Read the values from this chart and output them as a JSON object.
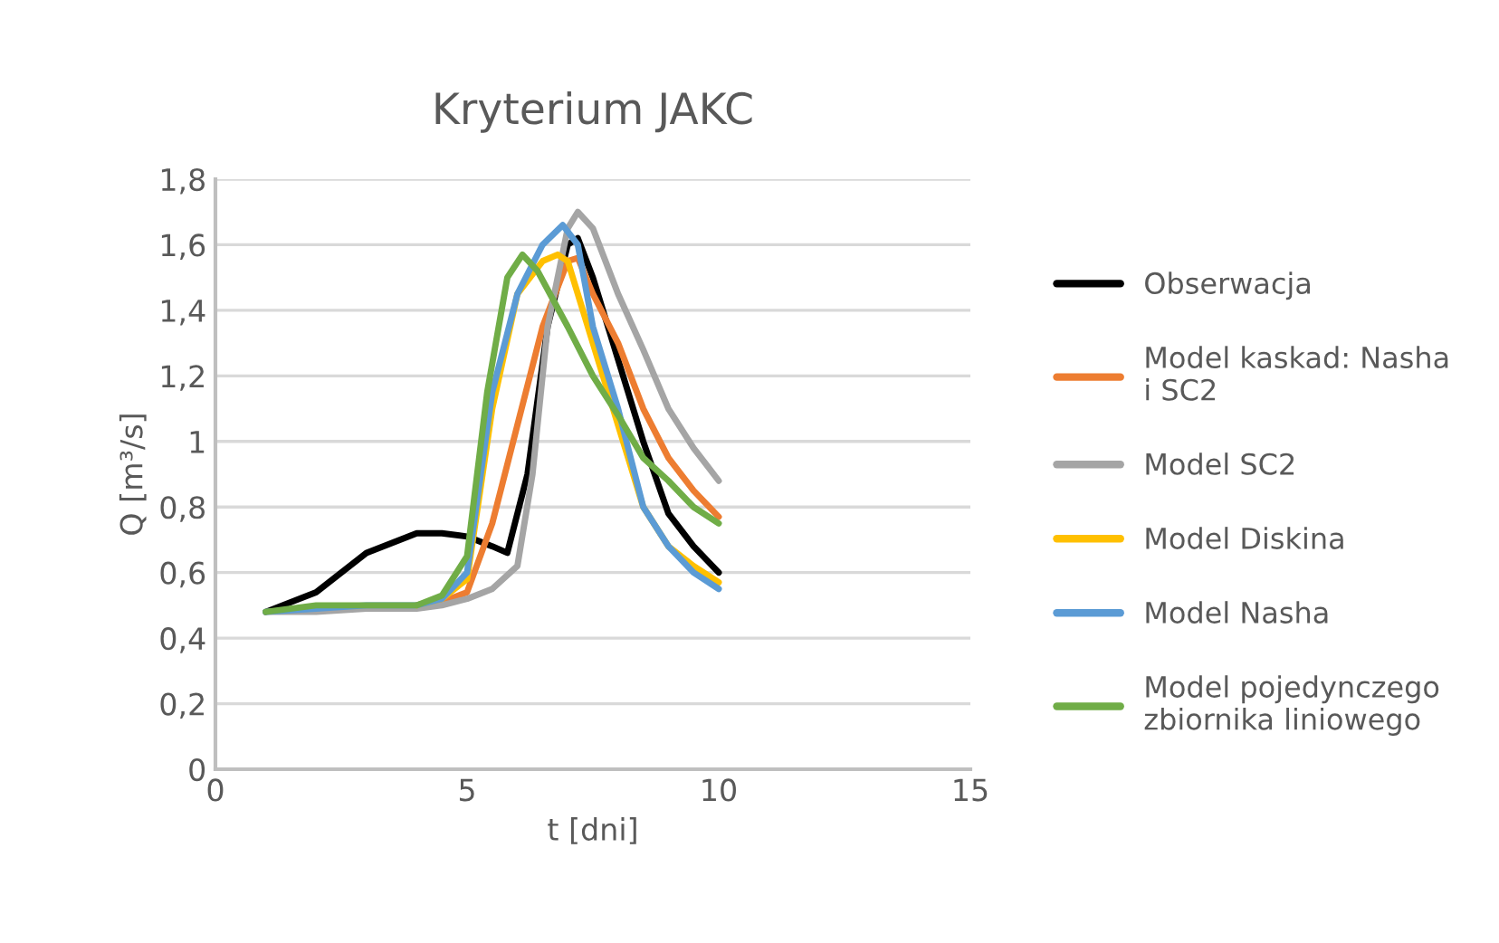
{
  "chart_data": {
    "type": "line",
    "title": "Kryterium JAKC",
    "xlabel": "t [dni]",
    "ylabel": "Q [m³/s]",
    "xlim": [
      0,
      15
    ],
    "xticks": [
      0,
      5,
      10,
      15
    ],
    "ylim": [
      0,
      1.8
    ],
    "yticks": [
      0,
      {
        "value": 0.2,
        "label": "0,2"
      },
      {
        "value": 0.4,
        "label": "0,4"
      },
      {
        "value": 0.6,
        "label": "0,6"
      },
      {
        "value": 0.8,
        "label": "0,8"
      },
      1,
      {
        "value": 1.2,
        "label": "1,2"
      },
      {
        "value": 1.4,
        "label": "1,4"
      },
      {
        "value": 1.6,
        "label": "1,6"
      },
      {
        "value": 1.8,
        "label": "1,8"
      }
    ],
    "grid": "y",
    "legend": "right",
    "marker": "none",
    "line_style": "solid",
    "series": [
      {
        "name": "Obserwacja",
        "color": "#000000",
        "x": [
          1,
          2,
          3,
          4,
          4.5,
          5,
          5.5,
          5.8,
          6.2,
          6.6,
          7,
          7.2,
          7.5,
          8,
          8.5,
          9,
          9.5,
          10
        ],
        "values": [
          0.48,
          0.54,
          0.66,
          0.72,
          0.72,
          0.71,
          0.68,
          0.66,
          0.9,
          1.35,
          1.6,
          1.62,
          1.5,
          1.25,
          1.0,
          0.78,
          0.68,
          0.6
        ]
      },
      {
        "name": "Model kaskad: Nasha\ni SC2",
        "color": "#ed7d31",
        "x": [
          4,
          4.5,
          5,
          5.5,
          6,
          6.5,
          7,
          7.2,
          7.5,
          8,
          8.5,
          9,
          9.5,
          10
        ],
        "values": [
          0.5,
          0.51,
          0.54,
          0.75,
          1.05,
          1.35,
          1.55,
          1.56,
          1.45,
          1.3,
          1.1,
          0.95,
          0.85,
          0.77
        ]
      },
      {
        "name": "Model SC2",
        "color": "#a5a5a5",
        "x": [
          1,
          2,
          3,
          4,
          4.5,
          5,
          5.5,
          6,
          6.3,
          6.6,
          7,
          7.2,
          7.5,
          8,
          8.5,
          9,
          9.5,
          10
        ],
        "values": [
          0.48,
          0.48,
          0.49,
          0.49,
          0.5,
          0.52,
          0.55,
          0.62,
          0.9,
          1.35,
          1.65,
          1.7,
          1.65,
          1.45,
          1.28,
          1.1,
          0.98,
          0.88
        ]
      },
      {
        "name": "Model Diskina",
        "color": "#ffc000",
        "x": [
          4,
          4.5,
          5,
          5.5,
          6,
          6.5,
          6.8,
          7,
          7.5,
          8,
          8.5,
          9,
          9.5,
          10
        ],
        "values": [
          0.5,
          0.52,
          0.58,
          1.1,
          1.45,
          1.55,
          1.57,
          1.55,
          1.3,
          1.05,
          0.8,
          0.68,
          0.62,
          0.57
        ]
      },
      {
        "name": "Model Nasha",
        "color": "#5b9bd5",
        "x": [
          1,
          2,
          3,
          4,
          4.5,
          5,
          5.5,
          6,
          6.5,
          6.9,
          7.2,
          7.5,
          8,
          8.5,
          9,
          9.5,
          10
        ],
        "values": [
          0.48,
          0.49,
          0.5,
          0.5,
          0.52,
          0.6,
          1.15,
          1.45,
          1.6,
          1.66,
          1.6,
          1.35,
          1.1,
          0.8,
          0.68,
          0.6,
          0.55
        ]
      },
      {
        "name": "Model pojedynczego\nzbiornika liniowego",
        "color": "#70ad47",
        "x": [
          1,
          2,
          3,
          4,
          4.5,
          5,
          5.4,
          5.8,
          6.1,
          6.4,
          7,
          7.5,
          8,
          8.5,
          9,
          9.5,
          10
        ],
        "values": [
          0.48,
          0.5,
          0.5,
          0.5,
          0.53,
          0.65,
          1.15,
          1.5,
          1.57,
          1.52,
          1.35,
          1.2,
          1.08,
          0.95,
          0.88,
          0.8,
          0.75
        ]
      }
    ]
  }
}
